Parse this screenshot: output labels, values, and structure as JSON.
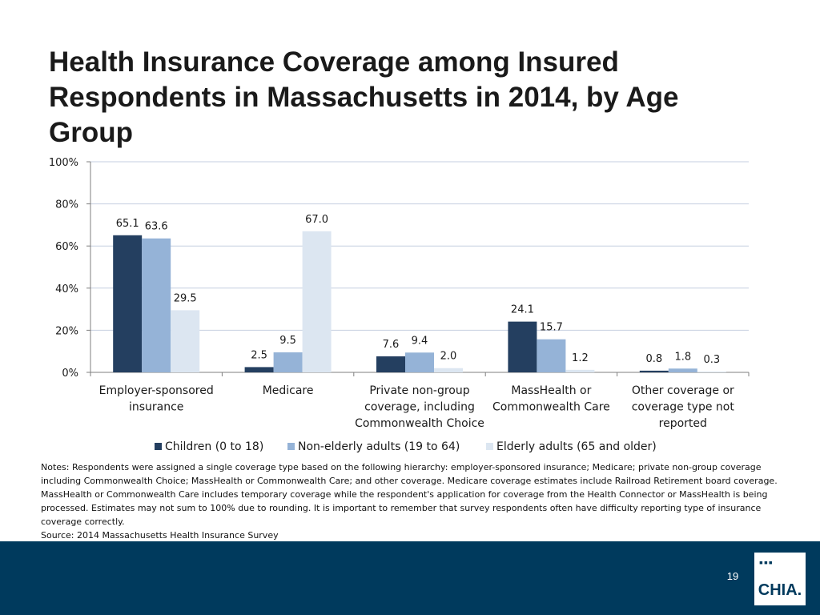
{
  "title": "Health Insurance Coverage among Insured Respondents in Massachusetts in 2014, by Age Group",
  "colors": {
    "children": "#243f60",
    "adults": "#95b3d7",
    "elderly": "#dce6f1",
    "gridline": "#c6cfe0",
    "footer": "#003a5d"
  },
  "chart_data": {
    "type": "bar",
    "title": "Health Insurance Coverage among Insured Respondents in Massachusetts in 2014, by Age Group",
    "xlabel": "",
    "ylabel": "",
    "ylim": [
      0,
      100
    ],
    "yticks": [
      "0%",
      "20%",
      "40%",
      "60%",
      "80%",
      "100%"
    ],
    "grid": true,
    "legend_position": "bottom",
    "categories": [
      [
        "Employer-sponsored",
        "insurance"
      ],
      [
        "Medicare"
      ],
      [
        "Private non-group",
        "coverage, including",
        "Commonwealth Choice"
      ],
      [
        "MassHealth or",
        "Commonwealth Care"
      ],
      [
        "Other coverage or",
        "coverage type not",
        "reported"
      ]
    ],
    "series": [
      {
        "name": "Children (0 to 18)",
        "values": [
          65.1,
          2.5,
          7.6,
          24.1,
          0.8
        ],
        "labels": [
          "65.1",
          "2.5",
          "7.6",
          "24.1",
          "0.8"
        ]
      },
      {
        "name": "Non-elderly adults (19 to 64)",
        "values": [
          63.6,
          9.5,
          9.4,
          15.7,
          1.8
        ],
        "labels": [
          "63.6",
          "9.5",
          "9.4",
          "15.7",
          "1.8"
        ]
      },
      {
        "name": "Elderly adults (65 and older)",
        "values": [
          29.5,
          67.0,
          2.0,
          1.2,
          0.3
        ],
        "labels": [
          "29.5",
          "67.0",
          "2.0",
          "1.2",
          "0.3"
        ]
      }
    ]
  },
  "notes": {
    "text": "Notes: Respondents were assigned a single coverage type based on the following hierarchy: employer-sponsored insurance; Medicare; private non-group coverage including Commonwealth Choice; MassHealth or Commonwealth Care; and other coverage. Medicare coverage estimates include Railroad Retirement board coverage. MassHealth or Commonwealth Care includes temporary coverage while the respondent's application for coverage from the Health Connector or MassHealth is being processed. Estimates may not sum to 100% due to rounding. It is important to remember that survey respondents often have difficulty reporting type of insurance coverage correctly.",
    "source": "Source:  2014 Massachusetts Health Insurance Survey"
  },
  "footer": {
    "page_number": "19",
    "logo_text": "CHIA.",
    "logo_dots": "▪▪▪"
  }
}
